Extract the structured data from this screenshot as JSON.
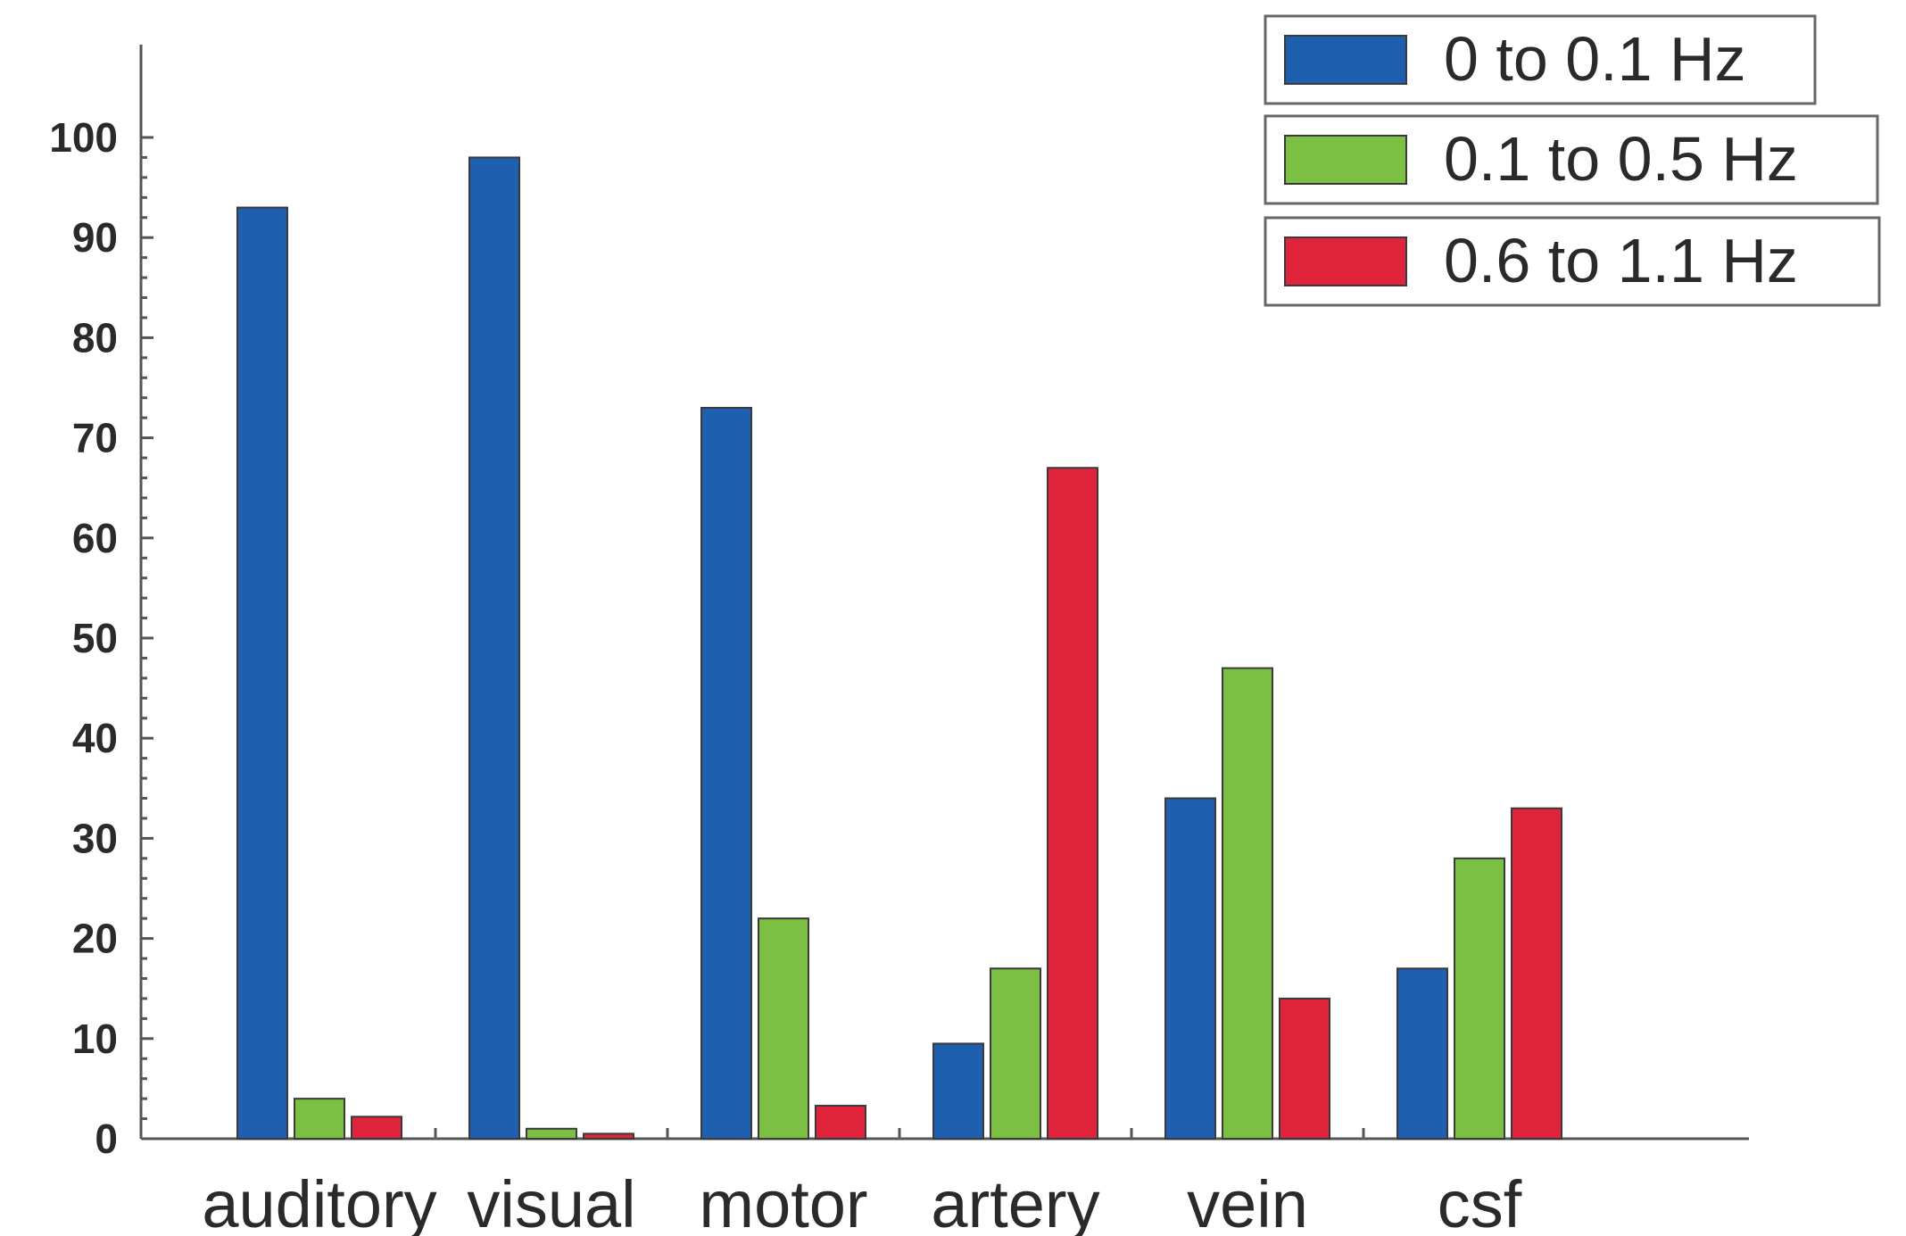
{
  "chart_data": {
    "type": "bar",
    "title": "",
    "xlabel": "",
    "ylabel": "",
    "ylim": [
      0,
      100
    ],
    "y_ticks": [
      0,
      10,
      20,
      30,
      40,
      50,
      60,
      70,
      80,
      90,
      100
    ],
    "grid": false,
    "legend_position": "top-right",
    "categories": [
      "auditory",
      "visual",
      "motor",
      "artery",
      "vein",
      "csf"
    ],
    "series": [
      {
        "name": "0 to 0.1 Hz",
        "color": "#1f5fb0",
        "values": [
          93,
          98,
          73,
          9.5,
          34,
          17
        ]
      },
      {
        "name": "0.1 to 0.5 Hz",
        "color": "#7bc043",
        "values": [
          4,
          1,
          22,
          17,
          47,
          28
        ]
      },
      {
        "name": "0.6 to 1.1 Hz",
        "color": "#e0243c",
        "values": [
          2.2,
          0.5,
          3.3,
          67,
          14,
          33
        ]
      }
    ]
  }
}
